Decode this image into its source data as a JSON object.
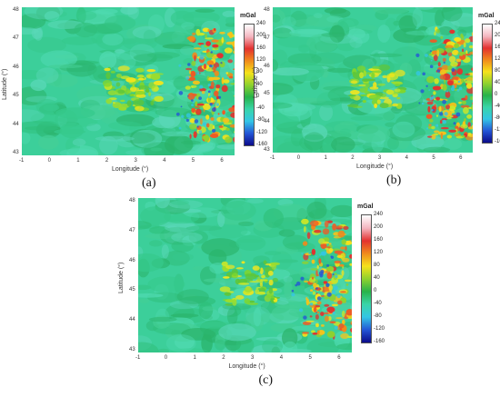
{
  "x_axis_title": "Longitude (°)",
  "y_axis_title": "Latitude (°)",
  "x_ticks": [
    "-1",
    "0",
    "1",
    "2",
    "3",
    "4",
    "5",
    "6"
  ],
  "y_ticks": [
    "48",
    "47",
    "46",
    "45",
    "44",
    "43"
  ],
  "colorbar": {
    "unit": "mGal",
    "ticks": [
      "240",
      "200",
      "160",
      "120",
      "80",
      "40",
      "0",
      "-40",
      "-80",
      "-120",
      "-160"
    ],
    "colors": [
      "#ffffff",
      "#f4b6c0",
      "#e3312f",
      "#f08a1c",
      "#f5e21b",
      "#8fd12e",
      "#27b34a",
      "#39d5a8",
      "#34c6e4",
      "#2456d6",
      "#0b0b8a"
    ]
  },
  "panels": [
    {
      "label": "(a)"
    },
    {
      "label": "(b)"
    },
    {
      "label": "(c)"
    }
  ]
}
